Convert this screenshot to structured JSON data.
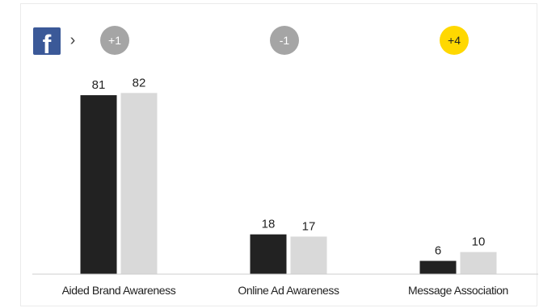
{
  "header": {
    "platform_icon": "facebook-icon",
    "platform_letter": "f",
    "chevron": "›"
  },
  "colors": {
    "facebook_blue": "#3b5998",
    "series_a": "#222222",
    "series_b": "#d9d9d9",
    "badge_neutral": "#a5a5a5",
    "badge_highlight": "#ffd800",
    "axis": "#cccccc",
    "text": "#222222"
  },
  "chart_data": {
    "type": "bar",
    "categories": [
      "Aided Brand Awareness",
      "Online Ad Awareness",
      "Message Association"
    ],
    "series": [
      {
        "values": [
          81,
          18,
          6
        ]
      },
      {
        "values": [
          82,
          17,
          10
        ]
      }
    ],
    "deltas": [
      {
        "label": "+1",
        "highlight": false
      },
      {
        "label": "-1",
        "highlight": false
      },
      {
        "label": "+4",
        "highlight": true
      }
    ],
    "ylim": [
      0,
      100
    ],
    "grid": false,
    "legend": "none"
  }
}
